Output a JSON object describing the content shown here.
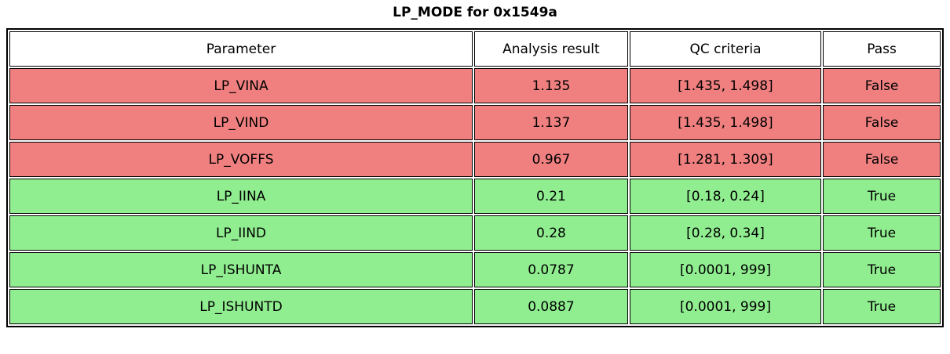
{
  "chart_data": {
    "type": "table",
    "title": "LP_MODE for 0x1549a",
    "columns": [
      "Parameter",
      "Analysis result",
      "QC criteria",
      "Pass"
    ],
    "rows": [
      {
        "parameter": "LP_VINA",
        "result": "1.135",
        "criteria": "[1.435, 1.498]",
        "pass": "False",
        "status": "fail"
      },
      {
        "parameter": "LP_VIND",
        "result": "1.137",
        "criteria": "[1.435, 1.498]",
        "pass": "False",
        "status": "fail"
      },
      {
        "parameter": "LP_VOFFS",
        "result": "0.967",
        "criteria": "[1.281, 1.309]",
        "pass": "False",
        "status": "fail"
      },
      {
        "parameter": "LP_IINA",
        "result": "0.21",
        "criteria": "[0.18, 0.24]",
        "pass": "True",
        "status": "pass"
      },
      {
        "parameter": "LP_IIND",
        "result": "0.28",
        "criteria": "[0.28, 0.34]",
        "pass": "True",
        "status": "pass"
      },
      {
        "parameter": "LP_ISHUNTA",
        "result": "0.0787",
        "criteria": "[0.0001, 999]",
        "pass": "True",
        "status": "pass"
      },
      {
        "parameter": "LP_ISHUNTD",
        "result": "0.0887",
        "criteria": "[0.0001, 999]",
        "pass": "True",
        "status": "pass"
      }
    ],
    "colors": {
      "fail": "#f08080",
      "pass": "#90ee90",
      "header_bg": "#ffffff",
      "border": "#000000",
      "text": "#000000"
    },
    "layout_hints": {
      "legend_position": "none",
      "grid": "cell-borders"
    }
  }
}
